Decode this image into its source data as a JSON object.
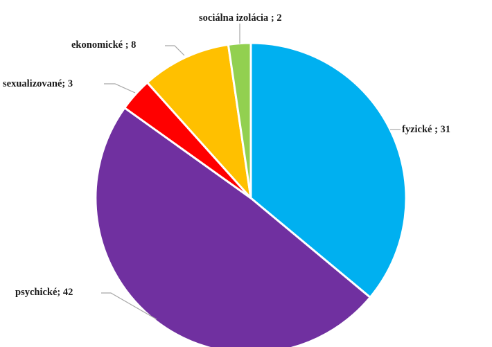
{
  "chart_data": {
    "type": "pie",
    "title": "",
    "slices": [
      {
        "label": "fyzické ; 31",
        "category": "fyzické",
        "value": 31,
        "color": "#00B0F0"
      },
      {
        "label": "psychické; 42",
        "category": "psychické",
        "value": 42,
        "color": "#7030A0"
      },
      {
        "label": "sexualizované; 3",
        "category": "sexualizované",
        "value": 3,
        "color": "#FF0000"
      },
      {
        "label": "ekonomické ; 8",
        "category": "ekonomické",
        "value": 8,
        "color": "#FFC000"
      },
      {
        "label": "sociálna izolácia ; 2",
        "category": "sociálna izolácia",
        "value": 2,
        "color": "#92D050"
      }
    ],
    "start_angle": "12 o'clock",
    "direction": "clockwise",
    "legend": "none"
  }
}
